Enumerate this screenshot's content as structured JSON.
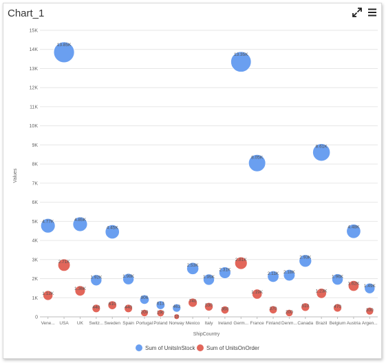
{
  "panel": {
    "title": "Chart_1",
    "expand_icon": "expand-icon",
    "menu_icon": "hamburger-menu-icon"
  },
  "colors": {
    "series1": "#6a9ff0",
    "series2": "#e2665a",
    "grid": "#e6e6e6",
    "axis_text": "#666666",
    "label_text": "#555555"
  },
  "chart_data": {
    "type": "scatter",
    "xlabel": "ShipCountry",
    "ylabel": "Values",
    "ylim": [
      0,
      15000
    ],
    "yticks": [
      0,
      1000,
      2000,
      3000,
      4000,
      5000,
      6000,
      7000,
      8000,
      9000,
      10000,
      11000,
      12000,
      13000,
      14000,
      15000
    ],
    "ytick_labels": [
      "0",
      "1K",
      "2K",
      "3K",
      "4K",
      "5K",
      "6K",
      "7K",
      "8K",
      "9K",
      "10K",
      "11K",
      "12K",
      "13K",
      "14K",
      "15K"
    ],
    "grid": true,
    "legend_position": "bottom",
    "categories": [
      "Vene...",
      "USA",
      "UK",
      "Switz...",
      "Sweden",
      "Spain",
      "Portugal",
      "Poland",
      "Norway",
      "Mexico",
      "Italy",
      "Ireland",
      "Germ...",
      "France",
      "Finland",
      "Denm...",
      "Canada",
      "Brazil",
      "Belgium",
      "Austria",
      "Argen..."
    ],
    "series": [
      {
        "name": "Sum of UnitsInStock",
        "values": [
          4770,
          13850,
          4850,
          1920,
          4450,
          1980,
          906,
          613,
          463,
          2530,
          1950,
          2310,
          13350,
          8050,
          2110,
          2180,
          2930,
          8610,
          1960,
          4480,
          1490
        ],
        "labels": [
          "4.77K",
          "13.85K",
          "4.85K",
          "1.92K",
          "4.45K",
          "1.98K",
          "906",
          "613",
          "463",
          "2.53K",
          "1.95K",
          "2.31K",
          "13.35K",
          "8.05K",
          "2.11K",
          "2.18K",
          "2.93K",
          "8.61K",
          "1.96K",
          "4.48K",
          "1.49K"
        ]
      },
      {
        "name": "Sum of UnitsOnOrder",
        "values": [
          1120,
          2710,
          1360,
          440,
          610,
          440,
          200,
          190,
          10,
          740,
          530,
          360,
          2810,
          1190,
          370,
          200,
          510,
          1230,
          470,
          1620,
          300
        ],
        "labels": [
          "1.12K",
          "2.71K",
          "1.36K",
          "440",
          "610",
          "440",
          "200",
          "190",
          "10",
          "740",
          "530",
          "360",
          "2.81K",
          "1.19K",
          "370",
          "200",
          "510",
          "1.23K",
          "470",
          "1.62K",
          "300"
        ]
      }
    ]
  }
}
